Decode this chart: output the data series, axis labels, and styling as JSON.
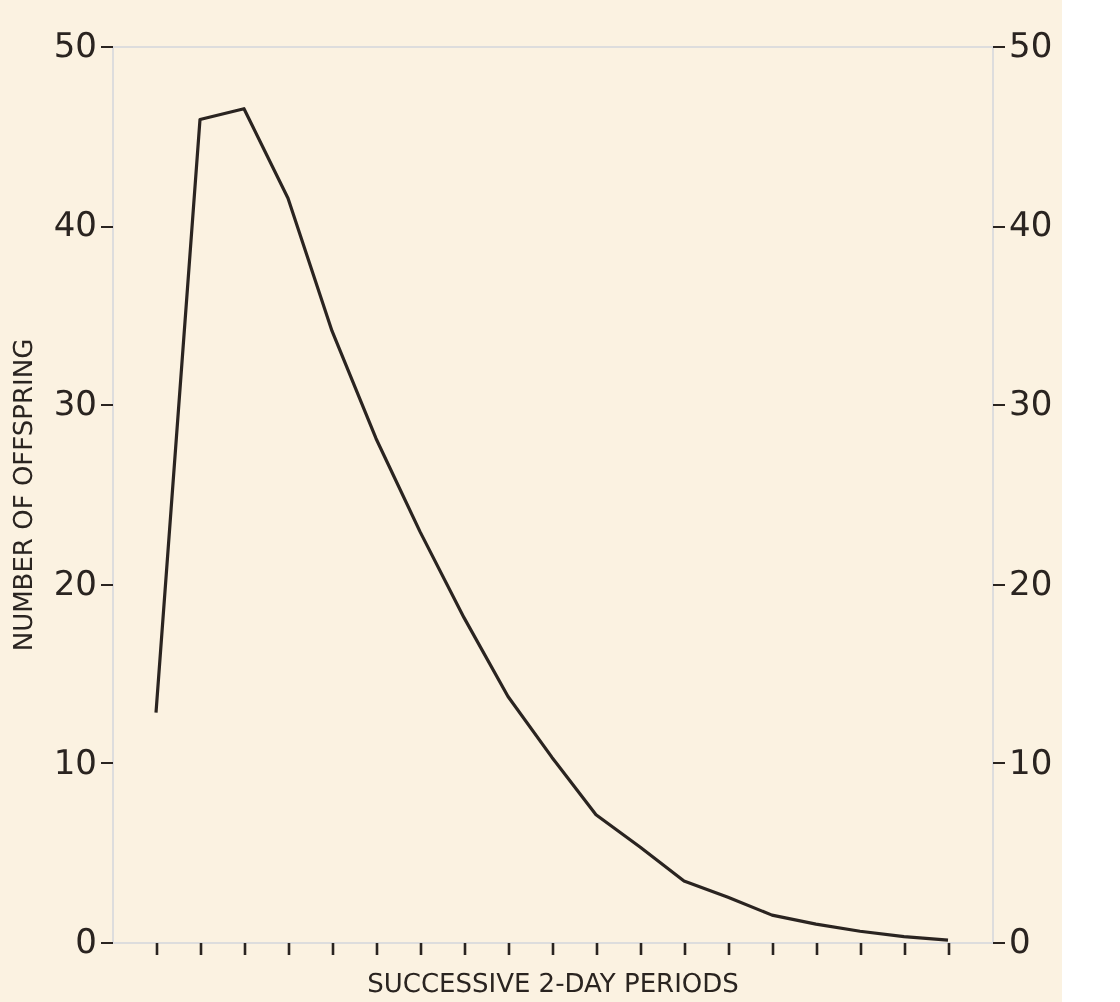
{
  "chart_data": {
    "type": "line",
    "xlabel": "SUCCESSIVE 2-DAY PERIODS",
    "ylabel": "NUMBER OF OFFSPRING",
    "categories": [
      null,
      null,
      null,
      null,
      null,
      null,
      null,
      null,
      null,
      null,
      null,
      null,
      null,
      null,
      null,
      null,
      null,
      null,
      null
    ],
    "series": [
      {
        "color": "#2a2420",
        "values": [
          12.8,
          45.9,
          46.5,
          41.5,
          34.1,
          28.1,
          22.9,
          18.1,
          13.7,
          10.3,
          7.1,
          5.3,
          3.4,
          2.5,
          1.5,
          1.0,
          0.6,
          0.3,
          0.1
        ]
      }
    ],
    "ylim": [
      0,
      50
    ],
    "yticks": [
      0,
      10,
      20,
      30,
      40,
      50
    ],
    "y2lim": [
      0,
      50
    ],
    "y2ticks": [
      0,
      10,
      20,
      30,
      40,
      50
    ],
    "tick_labels": "y",
    "grid": false,
    "marker": "none",
    "line_style": "solid"
  }
}
